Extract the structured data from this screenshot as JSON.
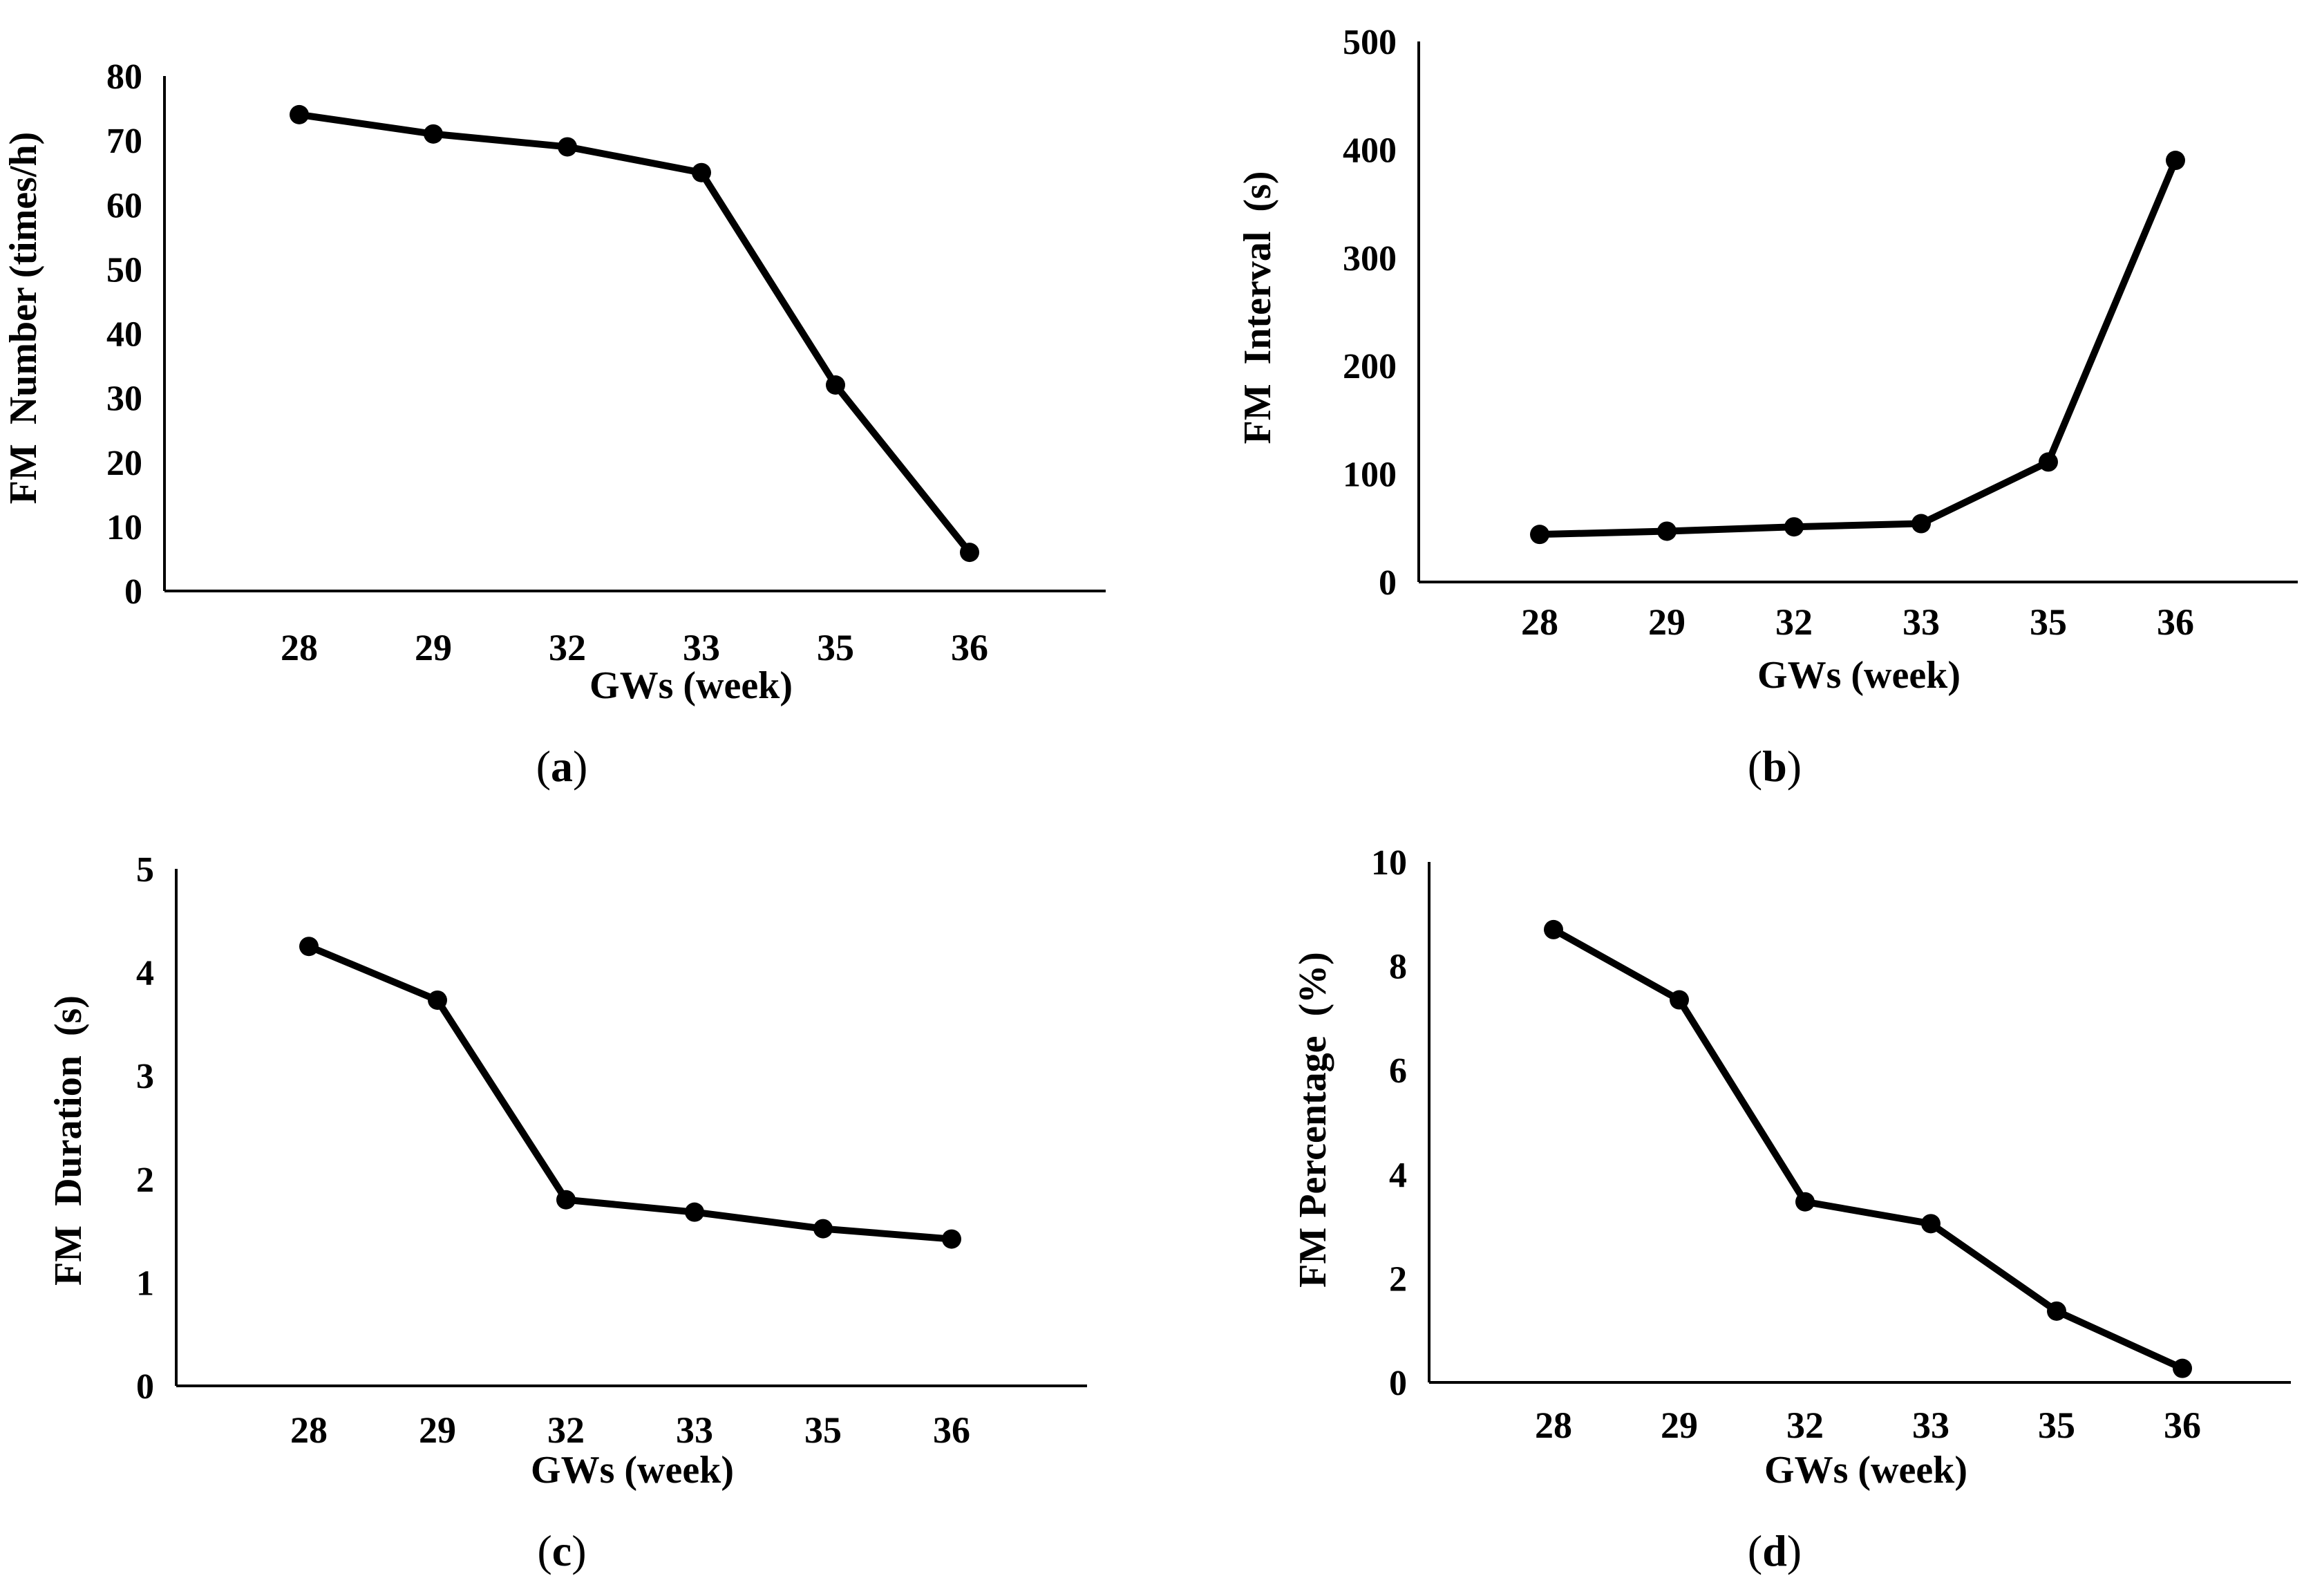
{
  "chart_data": [
    {
      "type": "line",
      "panel_label": "a",
      "categories": [
        "28",
        "29",
        "32",
        "33",
        "35",
        "36"
      ],
      "values": [
        74,
        71,
        69,
        65,
        32,
        6
      ],
      "xlabel": "GWs (week)",
      "ylabel": "FM  Number (times/h)",
      "ylim": [
        0,
        80
      ],
      "yticks": [
        0,
        10,
        20,
        30,
        40,
        50,
        60,
        70,
        80
      ],
      "grid": false,
      "legend": "none",
      "color": "#000000"
    },
    {
      "type": "line",
      "panel_label": "b",
      "categories": [
        "28",
        "29",
        "32",
        "33",
        "35",
        "36"
      ],
      "values": [
        44,
        47,
        51,
        54,
        111,
        390
      ],
      "xlabel": "GWs (week)",
      "ylabel": "FM  Interval  (s)",
      "ylim": [
        0,
        500
      ],
      "yticks": [
        0,
        100,
        200,
        300,
        400,
        500
      ],
      "grid": false,
      "legend": "none",
      "color": "#000000"
    },
    {
      "type": "line",
      "panel_label": "c",
      "categories": [
        "28",
        "29",
        "32",
        "33",
        "35",
        "36"
      ],
      "values": [
        4.25,
        3.73,
        1.8,
        1.68,
        1.52,
        1.42
      ],
      "xlabel": "GWs (week)",
      "ylabel": "FM  Duration  (s)",
      "ylim": [
        0,
        5
      ],
      "yticks": [
        0,
        1,
        2,
        3,
        4,
        5
      ],
      "grid": false,
      "legend": "none",
      "color": "#000000"
    },
    {
      "type": "line",
      "panel_label": "d",
      "categories": [
        "28",
        "29",
        "32",
        "33",
        "35",
        "36"
      ],
      "values": [
        8.7,
        7.35,
        3.47,
        3.05,
        1.37,
        0.27
      ],
      "xlabel": "GWs (week)",
      "ylabel": "FM Percentage  (%)",
      "ylim": [
        0,
        10
      ],
      "yticks": [
        0,
        2,
        4,
        6,
        8,
        10
      ],
      "grid": false,
      "legend": "none",
      "color": "#000000"
    }
  ]
}
